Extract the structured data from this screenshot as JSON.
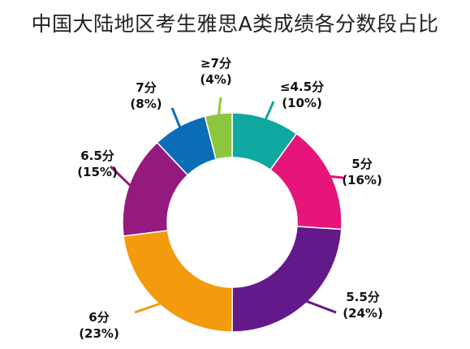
{
  "chart_data": {
    "type": "pie",
    "title": "中国大陆地区考生雅思A类成绩各分数段占比",
    "slices": [
      {
        "label": "≤4.5分",
        "percent_label": "(10%)",
        "value": 10,
        "color": "#0FA8A0"
      },
      {
        "label": "5分",
        "percent_label": "(16%)",
        "value": 16,
        "color": "#E5157A"
      },
      {
        "label": "5.5分",
        "percent_label": "(24%)",
        "value": 24,
        "color": "#63198A"
      },
      {
        "label": "6分",
        "percent_label": "(23%)",
        "value": 23,
        "color": "#F39A0D"
      },
      {
        "label": "6.5分",
        "percent_label": "(15%)",
        "value": 15,
        "color": "#951A7F"
      },
      {
        "label": "7分",
        "percent_label": "(8%)",
        "value": 8,
        "color": "#0B6DB8"
      },
      {
        "label": "≥7分",
        "percent_label": "(4%)",
        "value": 4,
        "color": "#8DC63F"
      }
    ]
  }
}
